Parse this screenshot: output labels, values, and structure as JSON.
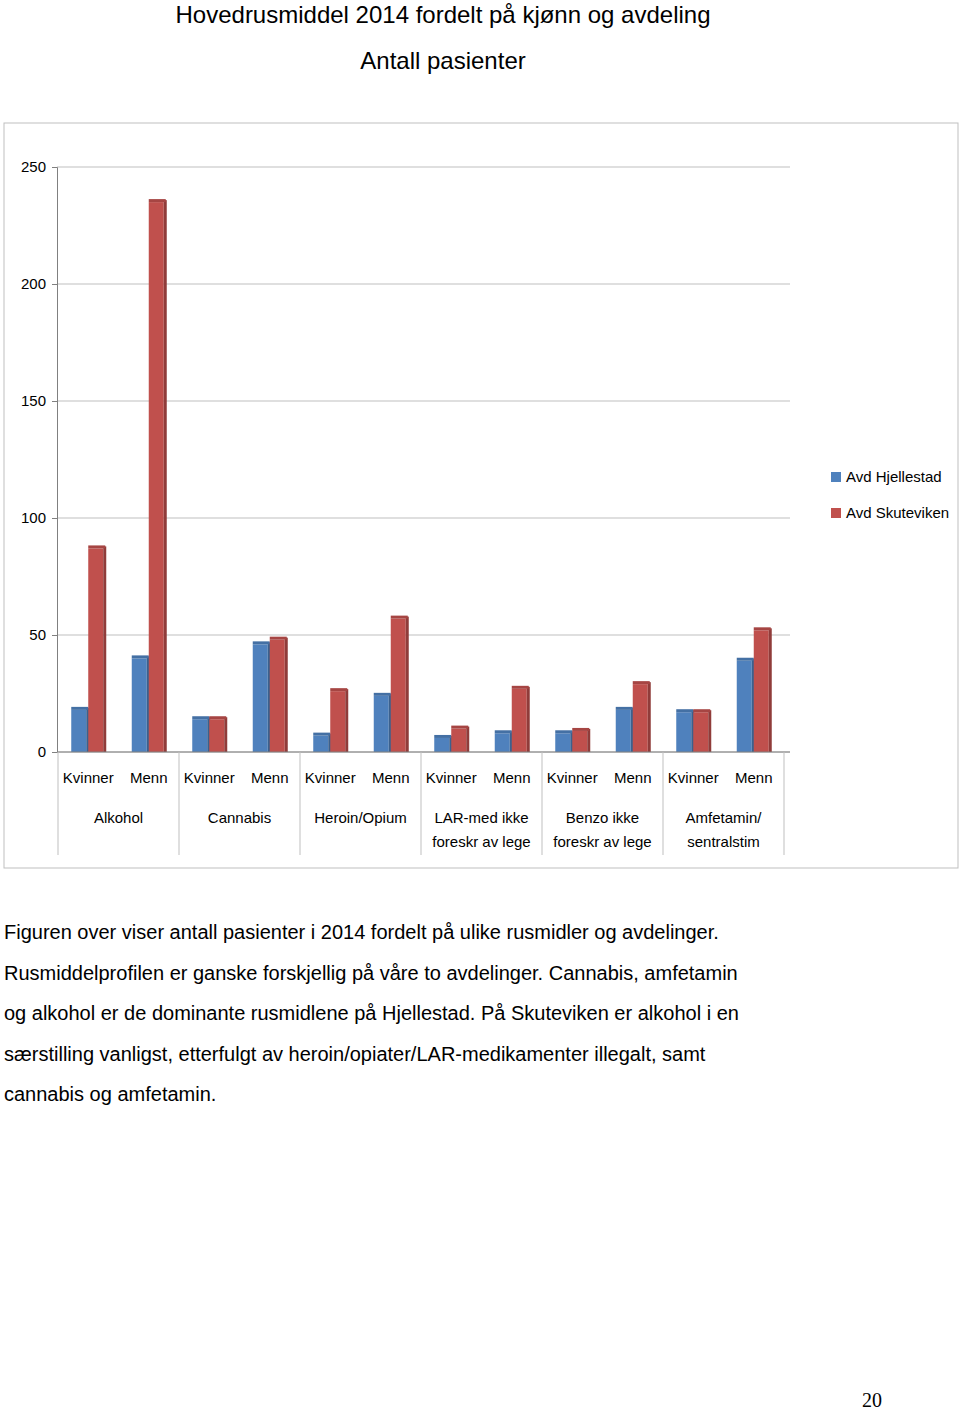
{
  "chart_data": {
    "type": "bar",
    "title": "Hovedrusmiddel 2014 fordelt på kjønn og avdeling",
    "subtitle": "Antall pasienter",
    "categories": [
      "Kvinner",
      "Menn",
      "Kvinner",
      "Menn",
      "Kvinner",
      "Menn",
      "Kvinner",
      "Menn",
      "Kvinner",
      "Menn",
      "Kvinner",
      "Menn"
    ],
    "groups": [
      "Alkohol",
      "Cannabis",
      "Heroin/Opium",
      "LAR-med ikke\nforeskr av lege",
      "Benzo ikke\nforeskr av lege",
      "Amfetamin/\nsentralstim"
    ],
    "series": [
      {
        "name": "Avd Hjellestad",
        "color": "#4f81bd",
        "values": [
          18,
          40,
          14,
          46,
          7,
          24,
          6,
          8,
          8,
          18,
          17,
          39
        ]
      },
      {
        "name": "Avd Skuteviken",
        "color": "#c0504d",
        "values": [
          87,
          235,
          14,
          48,
          26,
          57,
          10,
          27,
          9,
          29,
          17,
          52
        ]
      }
    ],
    "ylim": [
      0,
      250
    ],
    "yticks": [
      0,
      50,
      100,
      150,
      200,
      250
    ],
    "grid": true,
    "legend": "right"
  },
  "text": {
    "caption": [
      "Figuren over viser antall pasienter i 2014 fordelt på ulike rusmidler og avdelinger.",
      "Rusmiddelprofilen er ganske forskjellig på våre to avdelinger. Cannabis, amfetamin",
      "og alkohol er de dominante rusmidlene på Hjellestad. På Skuteviken er alkohol i en",
      "særstilling vanligst, etterfulgt av heroin/opiater/LAR-medikamenter illegalt, samt",
      "cannabis og amfetamin."
    ],
    "page_number": "20"
  }
}
